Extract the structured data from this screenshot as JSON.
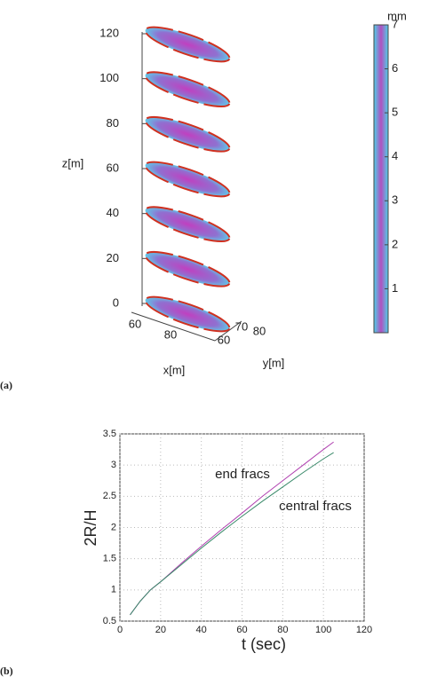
{
  "chart_data": [
    {
      "type": "fracture3d",
      "panel_label": "(a)",
      "xlabel": "x[m]",
      "ylabel": "y[m]",
      "zlabel": "z[m]",
      "xticks": [
        60,
        80
      ],
      "yticks": [
        60,
        70,
        80
      ],
      "zlim": [
        0,
        120
      ],
      "zticks": [
        0,
        20,
        40,
        60,
        80,
        100,
        120
      ],
      "fracture_z": [
        0,
        20,
        40,
        60,
        80,
        100,
        120
      ],
      "colorbar_label": "mm",
      "clim": [
        0,
        7
      ],
      "cticks": [
        1,
        2,
        3,
        4,
        5,
        6,
        7
      ],
      "colors": [
        "#4fd0e8",
        "#b050c0",
        "#d03020"
      ]
    },
    {
      "type": "line",
      "panel_label": "(b)",
      "xlabel": "t (sec)",
      "ylabel": "2R/H",
      "annotations": [
        "end fracs",
        "central fracs"
      ],
      "xlim": [
        0,
        120
      ],
      "xticks": [
        0,
        20,
        40,
        60,
        80,
        100,
        120
      ],
      "ylim": [
        0.5,
        3.5
      ],
      "yticks": [
        0.5,
        1,
        1.5,
        2,
        2.5,
        3,
        3.5
      ],
      "grid": true,
      "x": [
        5,
        10,
        15,
        20,
        30,
        40,
        50,
        60,
        70,
        80,
        90,
        100,
        105
      ],
      "series": [
        {
          "color": "#b040b0",
          "values": [
            0.6,
            0.82,
            1.0,
            1.13,
            1.42,
            1.7,
            1.97,
            2.23,
            2.5,
            2.75,
            3.0,
            3.25,
            3.37
          ]
        },
        {
          "color": "#3a8a6a",
          "values": [
            0.6,
            0.82,
            1.0,
            1.13,
            1.4,
            1.67,
            1.93,
            2.18,
            2.42,
            2.65,
            2.88,
            3.1,
            3.2
          ]
        }
      ]
    }
  ]
}
